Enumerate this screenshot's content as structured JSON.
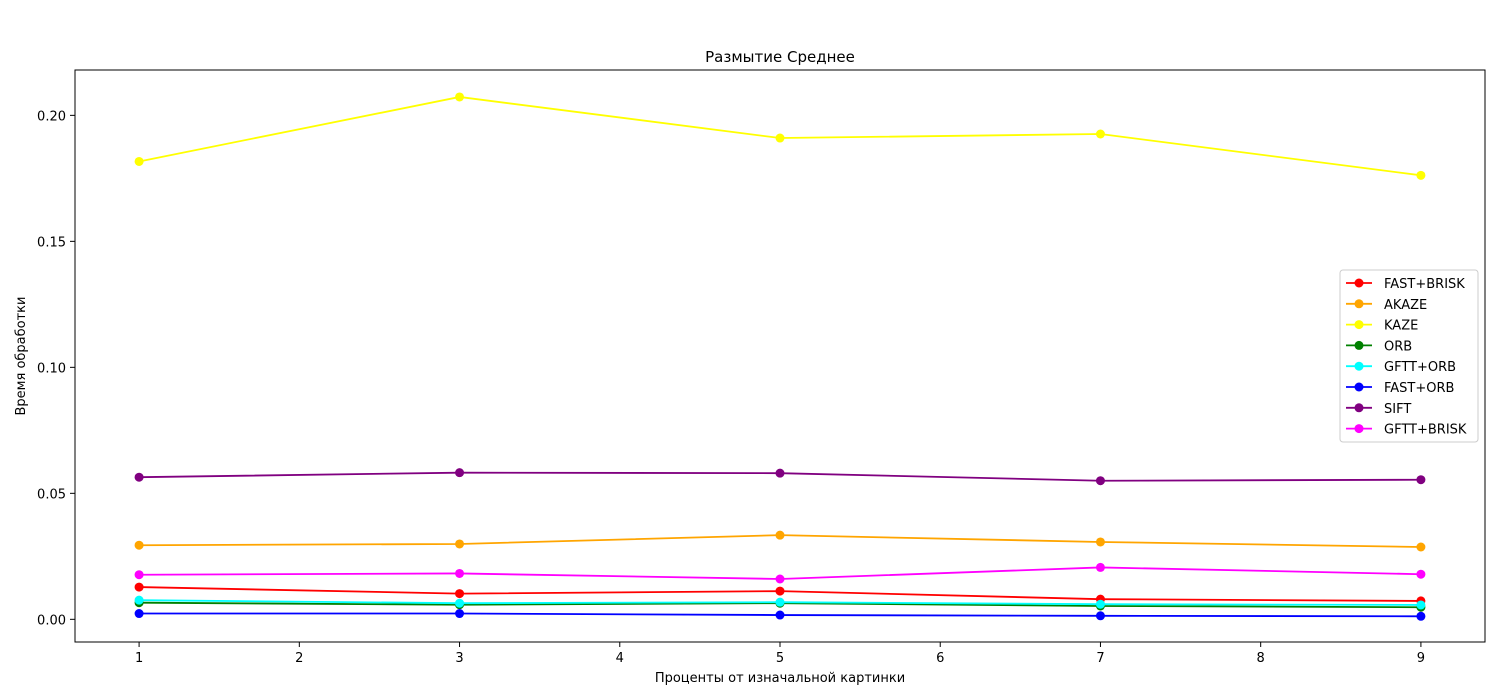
{
  "chart_data": {
    "type": "line",
    "title": "Размытие Среднее",
    "xlabel": "Проценты от изначальной картинки",
    "ylabel": "Время обработки",
    "x": [
      1,
      3,
      5,
      7,
      9
    ],
    "xlim": [
      0.6,
      9.4
    ],
    "ylim": [
      -0.009,
      0.218
    ],
    "xticks": [
      1,
      2,
      3,
      4,
      5,
      6,
      7,
      8,
      9
    ],
    "yticks": [
      0.0,
      0.05,
      0.1,
      0.15,
      0.2
    ],
    "ytick_labels": [
      "0.00",
      "0.05",
      "0.10",
      "0.15",
      "0.20"
    ],
    "grid": false,
    "legend_position": "right",
    "series": [
      {
        "name": "FAST+BRISK",
        "color": "#ff0000",
        "values": [
          0.0128,
          0.0102,
          0.0112,
          0.008,
          0.0073
        ]
      },
      {
        "name": "AKAZE",
        "color": "#ffa500",
        "values": [
          0.0294,
          0.0299,
          0.0334,
          0.0307,
          0.0287
        ]
      },
      {
        "name": "KAZE",
        "color": "#ffff00",
        "values": [
          0.1817,
          0.2073,
          0.191,
          0.1926,
          0.1762
        ]
      },
      {
        "name": "ORB",
        "color": "#008000",
        "values": [
          0.0066,
          0.0058,
          0.0064,
          0.0053,
          0.0048
        ]
      },
      {
        "name": "GFTT+ORB",
        "color": "#00ffff",
        "values": [
          0.0076,
          0.0064,
          0.0068,
          0.006,
          0.0057
        ]
      },
      {
        "name": "FAST+ORB",
        "color": "#0000ff",
        "values": [
          0.0023,
          0.0023,
          0.0017,
          0.0014,
          0.0012
        ]
      },
      {
        "name": "SIFT",
        "color": "#800080",
        "values": [
          0.0564,
          0.0582,
          0.058,
          0.055,
          0.0554
        ]
      },
      {
        "name": "GFTT+BRISK",
        "color": "#ff00ff",
        "values": [
          0.0177,
          0.0182,
          0.016,
          0.0206,
          0.0179
        ]
      }
    ]
  }
}
